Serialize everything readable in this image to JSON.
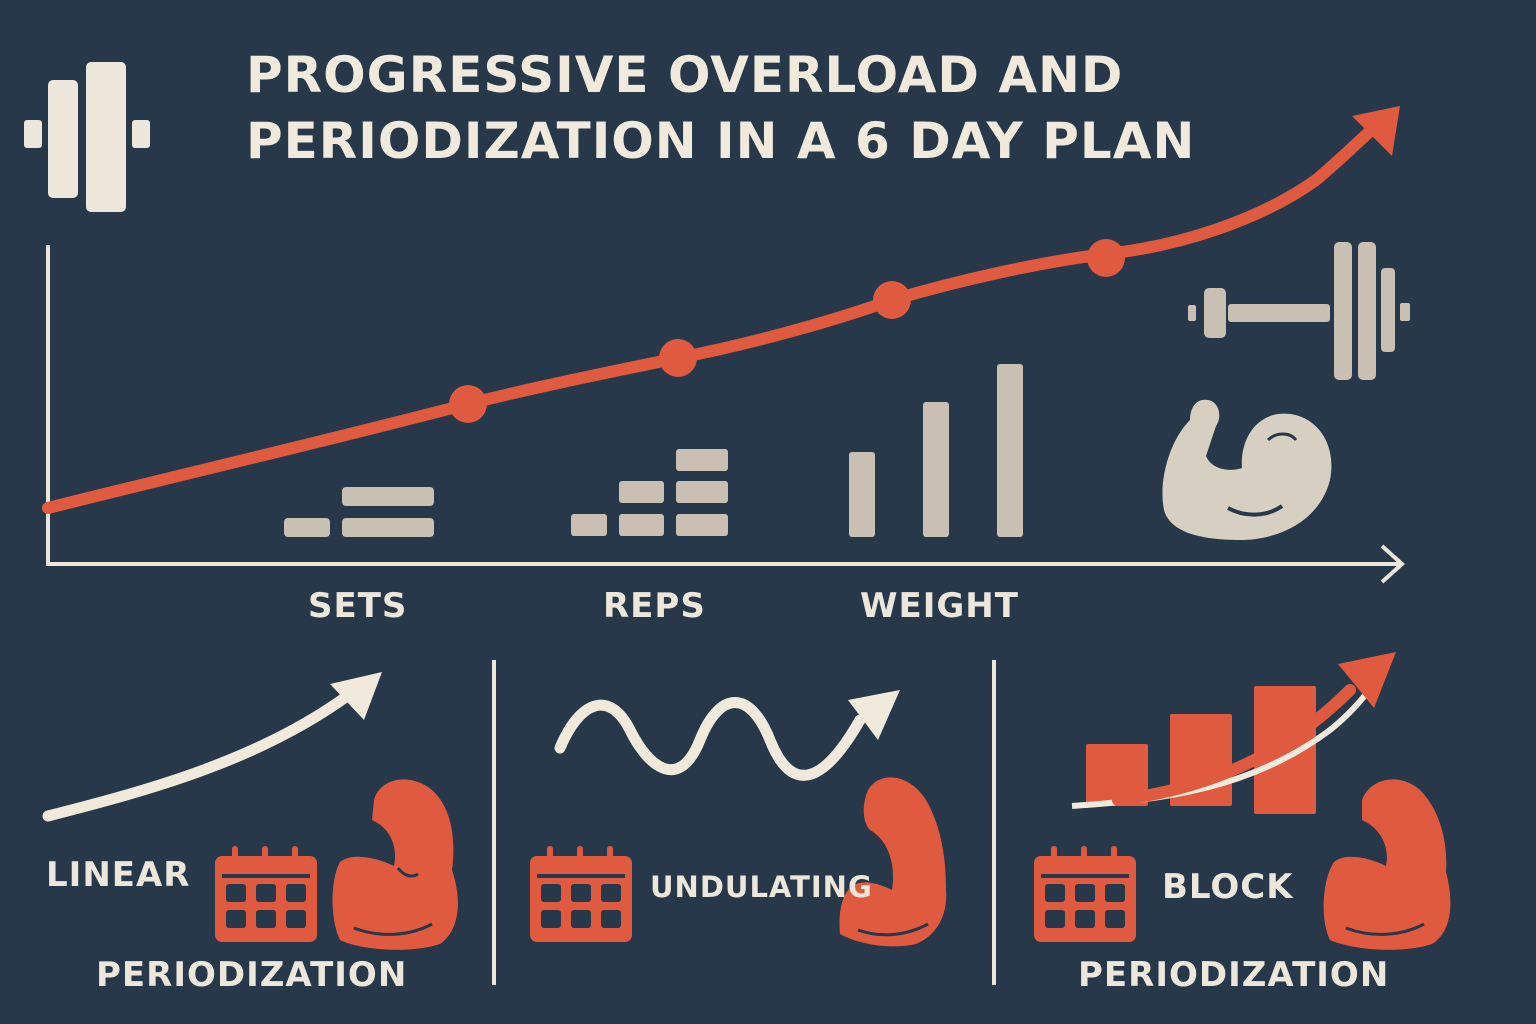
{
  "title_line1": "PROGRESSIVE OVERLOAD AND",
  "title_line2": "PERIODIZATION IN A 6 DAY PLAN",
  "axis_labels": {
    "sets": "SETS",
    "reps": "REPS",
    "weight": "WEIGHT"
  },
  "panels": {
    "linear": {
      "word1": "LINEAR",
      "word2": "PERIODIZATION"
    },
    "undulating": {
      "word1": "UNDULATING"
    },
    "block": {
      "word1": "BLOCK",
      "word2": "PERIODIZATION"
    }
  },
  "colors": {
    "background": "#263849",
    "accent": "#e05a40",
    "light": "#f1e9dc",
    "muted": "#c9bfb3"
  },
  "icons": [
    "barbell-plate-icon",
    "dumbbell-icon",
    "flexed-arm-icon",
    "calendar-icon",
    "trend-arrow-icon",
    "wave-arrow-icon"
  ]
}
